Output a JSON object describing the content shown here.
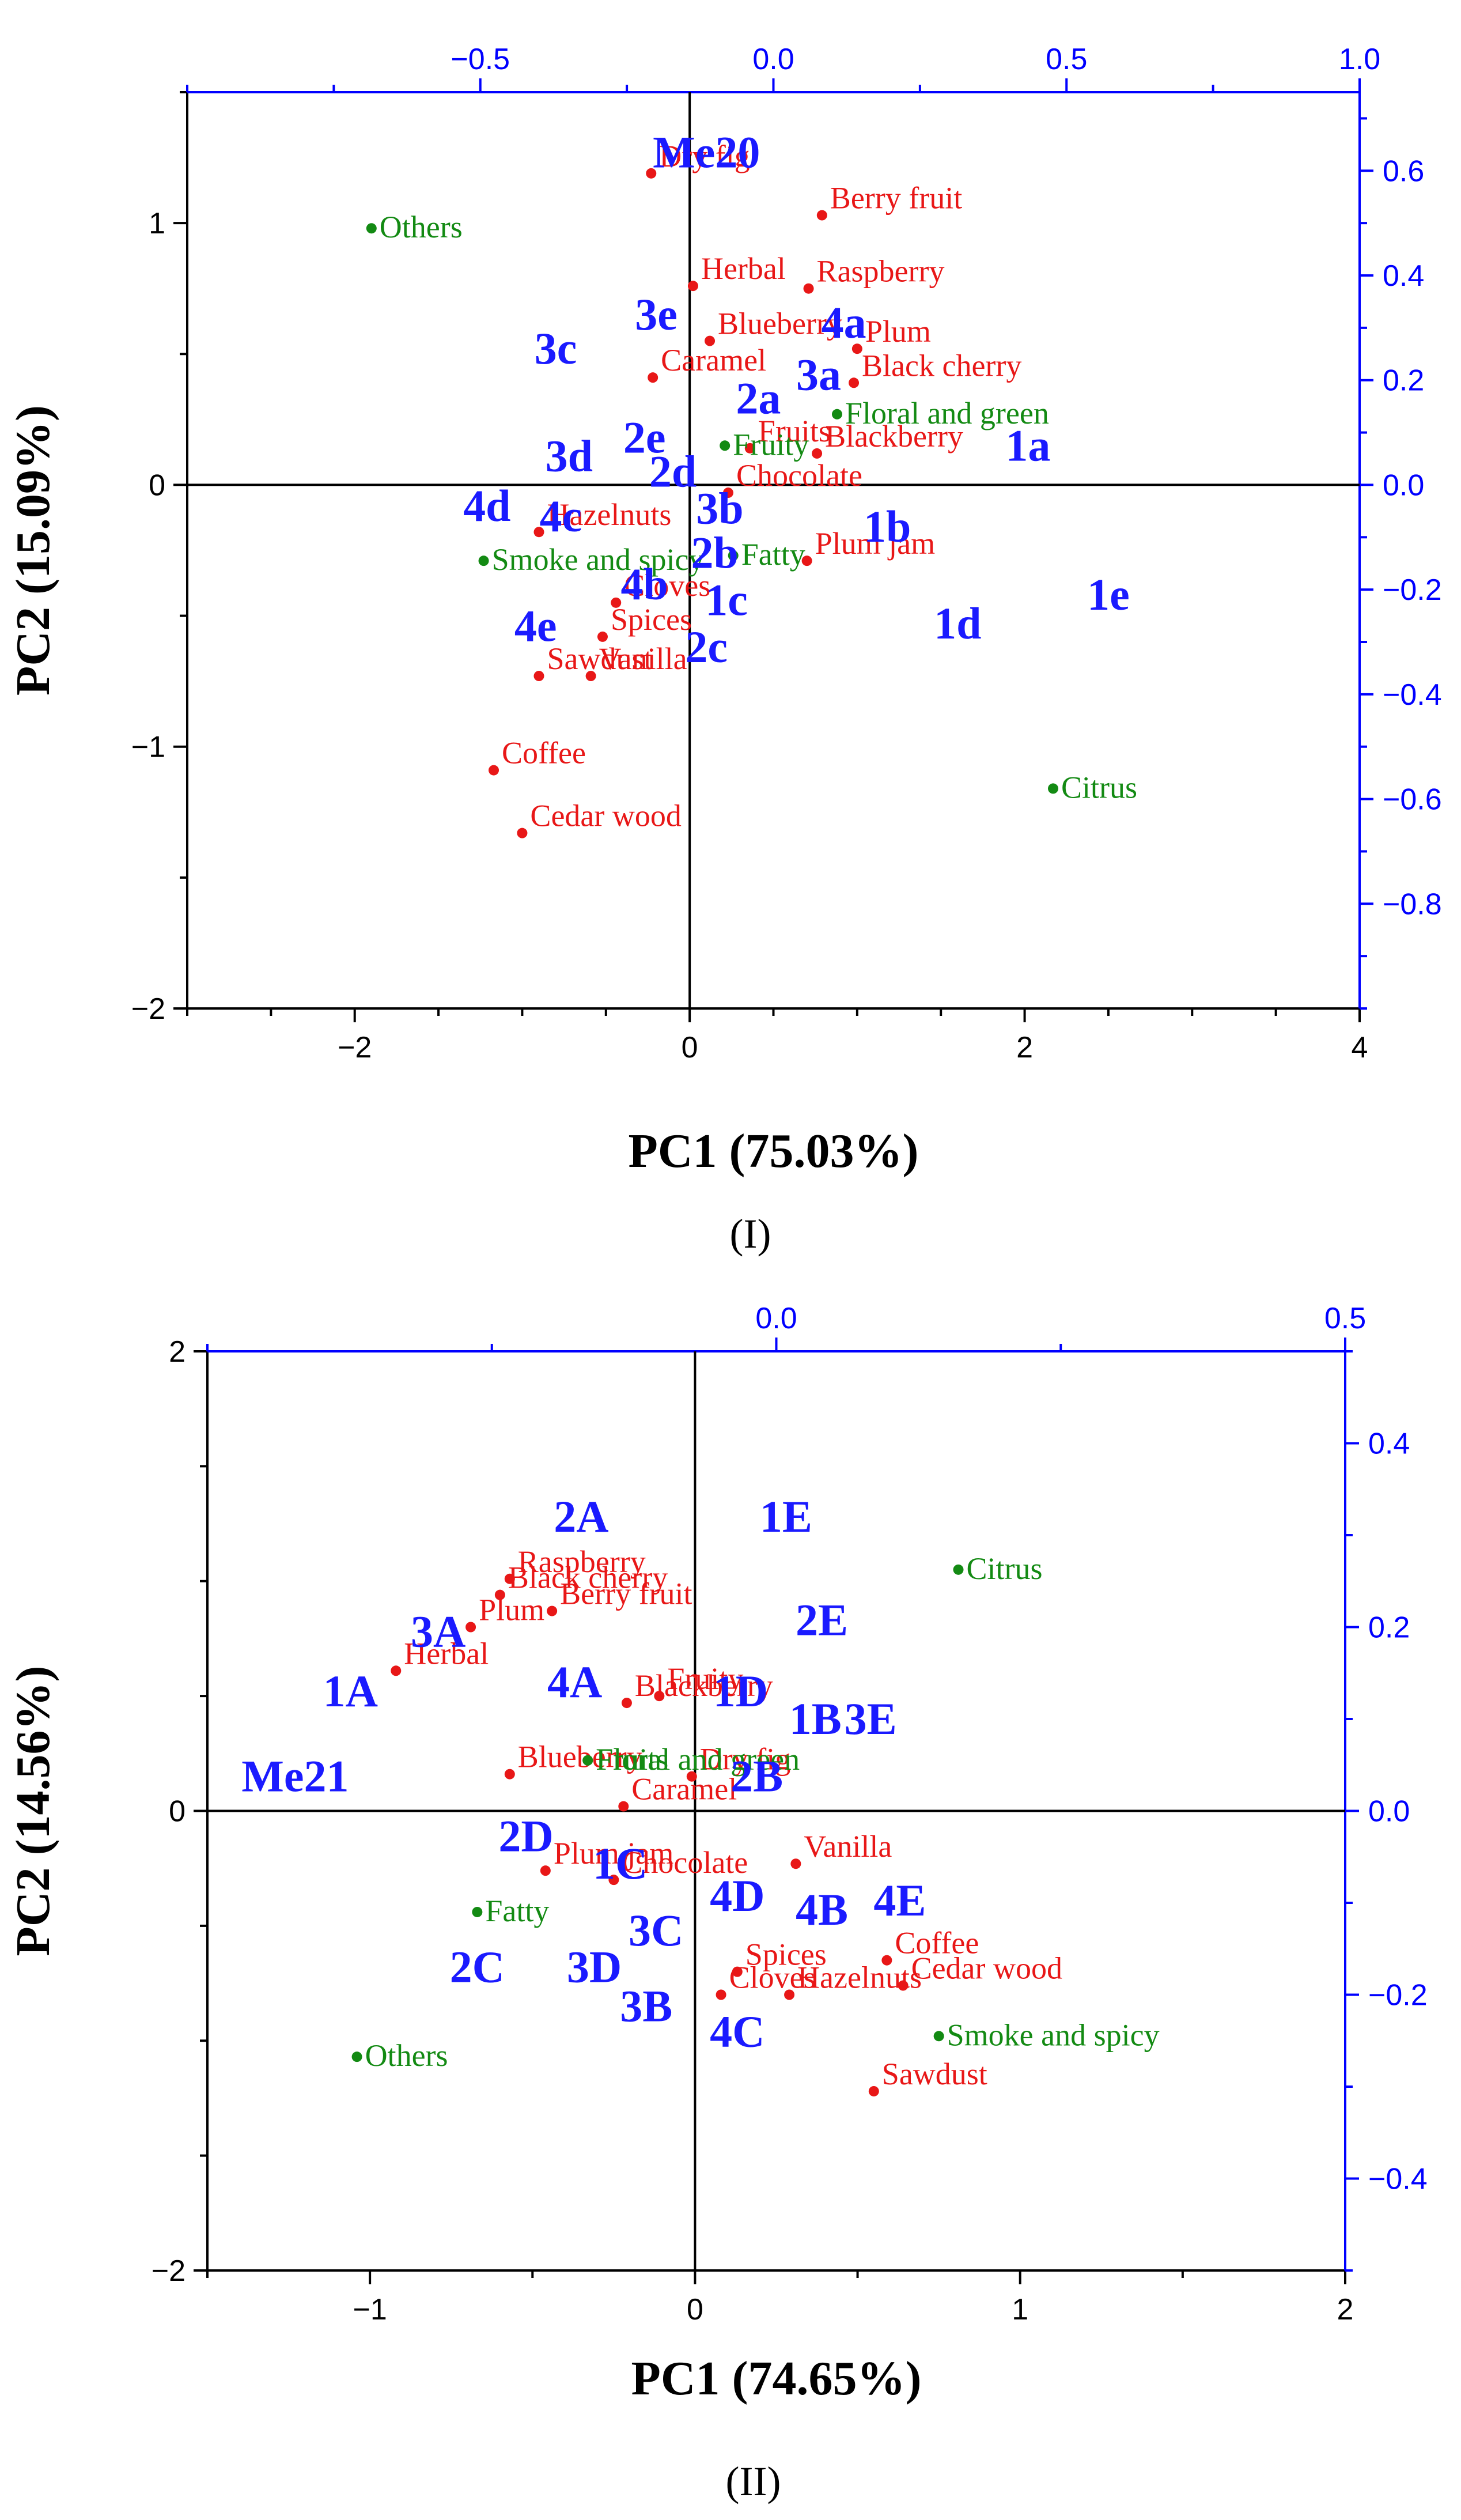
{
  "chart_data": [
    {
      "type": "scatter",
      "panel_label": "(I)",
      "xlabel": "PC1 (75.03%)",
      "ylabel": "PC2 (15.09%)",
      "xlim": [
        -3,
        4
      ],
      "ylim": [
        -2,
        1.5
      ],
      "x_ticks": [
        -2,
        0,
        2,
        4
      ],
      "y_ticks": [
        -2,
        -1,
        0,
        1
      ],
      "top_ticks": [
        -0.5,
        0.0,
        0.5,
        1.0
      ],
      "top_tick_labels": [
        "−0.5",
        "0.0",
        "0.5",
        "1.0"
      ],
      "top_lim": [
        -1.0,
        1.0
      ],
      "right_ticks": [
        0.6,
        0.4,
        0.2,
        0.0,
        -0.2,
        -0.4,
        -0.6,
        -0.8
      ],
      "right_tick_labels": [
        "0.6",
        "0.4",
        "0.2",
        "0.0",
        "−0.2",
        "−0.4",
        "−0.6",
        "−0.8"
      ],
      "right_lim": [
        -1.0,
        0.75
      ],
      "loadings_red": [
        {
          "label": "Dry fig",
          "x": -0.23,
          "y": 1.19
        },
        {
          "label": "Berry fruit",
          "x": 0.79,
          "y": 1.03
        },
        {
          "label": "Herbal",
          "x": 0.02,
          "y": 0.76
        },
        {
          "label": "Raspberry",
          "x": 0.71,
          "y": 0.75
        },
        {
          "label": "Blueberry",
          "x": 0.12,
          "y": 0.55
        },
        {
          "label": "Plum",
          "x": 1.0,
          "y": 0.52
        },
        {
          "label": "Caramel",
          "x": -0.22,
          "y": 0.41
        },
        {
          "label": "Black cherry",
          "x": 0.98,
          "y": 0.39
        },
        {
          "label": "Blackberry",
          "x": 0.76,
          "y": 0.12
        },
        {
          "label": "Fruits",
          "x": 0.36,
          "y": 0.14
        },
        {
          "label": "Chocolate",
          "x": 0.23,
          "y": -0.03
        },
        {
          "label": "Hazelnuts",
          "x": -0.9,
          "y": -0.18
        },
        {
          "label": "Plum jam",
          "x": 0.7,
          "y": -0.29
        },
        {
          "label": "Cloves",
          "x": -0.44,
          "y": -0.45
        },
        {
          "label": "Spices",
          "x": -0.52,
          "y": -0.58
        },
        {
          "label": "Sawdust",
          "x": -0.9,
          "y": -0.73
        },
        {
          "label": "Vanilla",
          "x": -0.59,
          "y": -0.73
        },
        {
          "label": "Coffee",
          "x": -1.17,
          "y": -1.09
        },
        {
          "label": "Cedar wood",
          "x": -1.0,
          "y": -1.33
        }
      ],
      "loadings_green": [
        {
          "label": "Others",
          "x": -1.9,
          "y": 0.98
        },
        {
          "label": "Fruity",
          "x": 0.21,
          "y": 0.15
        },
        {
          "label": "Floral and green",
          "x": 0.88,
          "y": 0.27
        },
        {
          "label": "Fatty",
          "x": 0.26,
          "y": -0.27
        },
        {
          "label": "Smoke and spicy",
          "x": -1.23,
          "y": -0.29
        },
        {
          "label": "Citrus",
          "x": 2.17,
          "y": -1.16
        }
      ],
      "samples": [
        {
          "label": "Me20",
          "x": 0.1,
          "y": 1.27
        },
        {
          "label": "3e",
          "x": -0.2,
          "y": 0.65
        },
        {
          "label": "4a",
          "x": 0.92,
          "y": 0.62
        },
        {
          "label": "3c",
          "x": -0.8,
          "y": 0.52
        },
        {
          "label": "3a",
          "x": 0.77,
          "y": 0.42
        },
        {
          "label": "2a",
          "x": 0.41,
          "y": 0.33
        },
        {
          "label": "2e",
          "x": -0.27,
          "y": 0.18
        },
        {
          "label": "3d",
          "x": -0.72,
          "y": 0.11
        },
        {
          "label": "1a",
          "x": 2.02,
          "y": 0.15
        },
        {
          "label": "2d",
          "x": -0.1,
          "y": 0.05
        },
        {
          "label": "4d",
          "x": -1.21,
          "y": -0.08
        },
        {
          "label": "4c",
          "x": -0.77,
          "y": -0.12
        },
        {
          "label": "3b",
          "x": 0.18,
          "y": -0.09
        },
        {
          "label": "1b",
          "x": 1.18,
          "y": -0.16
        },
        {
          "label": "2b",
          "x": 0.15,
          "y": -0.26
        },
        {
          "label": "4b",
          "x": -0.27,
          "y": -0.38
        },
        {
          "label": "1c",
          "x": 0.22,
          "y": -0.44
        },
        {
          "label": "1e",
          "x": 2.5,
          "y": -0.42
        },
        {
          "label": "4e",
          "x": -0.92,
          "y": -0.54
        },
        {
          "label": "1d",
          "x": 1.6,
          "y": -0.53
        },
        {
          "label": "2c",
          "x": 0.1,
          "y": -0.62
        }
      ]
    },
    {
      "type": "scatter",
      "panel_label": "(II)",
      "xlabel": "PC1 (74.65%)",
      "ylabel": "PC2 (14.56%)",
      "xlim": [
        -1.5,
        2
      ],
      "ylim": [
        -2,
        2
      ],
      "x_ticks": [
        -1,
        0,
        1,
        2
      ],
      "y_ticks": [
        -2,
        0,
        2
      ],
      "top_ticks": [
        0.0,
        0.5
      ],
      "top_tick_labels": [
        "0.0",
        "0.5"
      ],
      "top_lim": [
        -0.5,
        0.5
      ],
      "right_ticks": [
        0.4,
        0.2,
        0.0,
        -0.2,
        -0.4
      ],
      "right_tick_labels": [
        "0.4",
        "0.2",
        "0.0",
        "−0.2",
        "−0.4"
      ],
      "right_lim": [
        -0.5,
        0.5
      ],
      "loadings_red": [
        {
          "label": "Raspberry",
          "x": -0.57,
          "y": 1.01
        },
        {
          "label": "Black cherry",
          "x": -0.6,
          "y": 0.94
        },
        {
          "label": "Berry fruit",
          "x": -0.44,
          "y": 0.87
        },
        {
          "label": "Plum",
          "x": -0.69,
          "y": 0.8
        },
        {
          "label": "Herbal",
          "x": -0.92,
          "y": 0.61
        },
        {
          "label": "Blackberry",
          "x": -0.21,
          "y": 0.47
        },
        {
          "label": "Fruity",
          "x": -0.11,
          "y": 0.5
        },
        {
          "label": "Blueberry",
          "x": -0.57,
          "y": 0.16
        },
        {
          "label": "Dry fig",
          "x": -0.01,
          "y": 0.15
        },
        {
          "label": "Caramel",
          "x": -0.22,
          "y": 0.02
        },
        {
          "label": "Plum jam",
          "x": -0.46,
          "y": -0.26
        },
        {
          "label": "Chocolate",
          "x": -0.25,
          "y": -0.3
        },
        {
          "label": "Vanilla",
          "x": 0.31,
          "y": -0.23
        },
        {
          "label": "Coffee",
          "x": 0.59,
          "y": -0.65
        },
        {
          "label": "Spices",
          "x": 0.13,
          "y": -0.7
        },
        {
          "label": "Cedar wood",
          "x": 0.64,
          "y": -0.76
        },
        {
          "label": "Cloves",
          "x": 0.08,
          "y": -0.8
        },
        {
          "label": "Hazelnuts",
          "x": 0.29,
          "y": -0.8
        },
        {
          "label": "Sawdust",
          "x": 0.55,
          "y": -1.22
        }
      ],
      "loadings_green": [
        {
          "label": "Citrus",
          "x": 0.81,
          "y": 1.05
        },
        {
          "label": "Floral and green",
          "x": -0.33,
          "y": 0.22
        },
        {
          "label": "Fruits",
          "x": -0.33,
          "y": 0.22
        },
        {
          "label": "Fatty",
          "x": -0.67,
          "y": -0.44
        },
        {
          "label": "Smoke and spicy",
          "x": 0.75,
          "y": -0.98
        },
        {
          "label": "Others",
          "x": -1.04,
          "y": -1.07
        }
      ],
      "samples": [
        {
          "label": "2A",
          "x": -0.35,
          "y": 1.28
        },
        {
          "label": "1E",
          "x": 0.28,
          "y": 1.28
        },
        {
          "label": "3A",
          "x": -0.79,
          "y": 0.78
        },
        {
          "label": "2E",
          "x": 0.39,
          "y": 0.83
        },
        {
          "label": "1A",
          "x": -1.06,
          "y": 0.52
        },
        {
          "label": "4A",
          "x": -0.37,
          "y": 0.56
        },
        {
          "label": "1D",
          "x": 0.14,
          "y": 0.52
        },
        {
          "label": "1B",
          "x": 0.37,
          "y": 0.4
        },
        {
          "label": "3E",
          "x": 0.54,
          "y": 0.4
        },
        {
          "label": "Me21",
          "x": -1.23,
          "y": 0.15
        },
        {
          "label": "2B",
          "x": 0.19,
          "y": 0.15
        },
        {
          "label": "2D",
          "x": -0.52,
          "y": -0.11
        },
        {
          "label": "1C",
          "x": -0.23,
          "y": -0.23
        },
        {
          "label": "4D",
          "x": 0.13,
          "y": -0.37
        },
        {
          "label": "4B",
          "x": 0.39,
          "y": -0.43
        },
        {
          "label": "4E",
          "x": 0.63,
          "y": -0.39
        },
        {
          "label": "3C",
          "x": -0.12,
          "y": -0.52
        },
        {
          "label": "2C",
          "x": -0.67,
          "y": -0.68
        },
        {
          "label": "3D",
          "x": -0.31,
          "y": -0.68
        },
        {
          "label": "3B",
          "x": -0.15,
          "y": -0.85
        },
        {
          "label": "4C",
          "x": 0.13,
          "y": -0.96
        }
      ]
    }
  ]
}
